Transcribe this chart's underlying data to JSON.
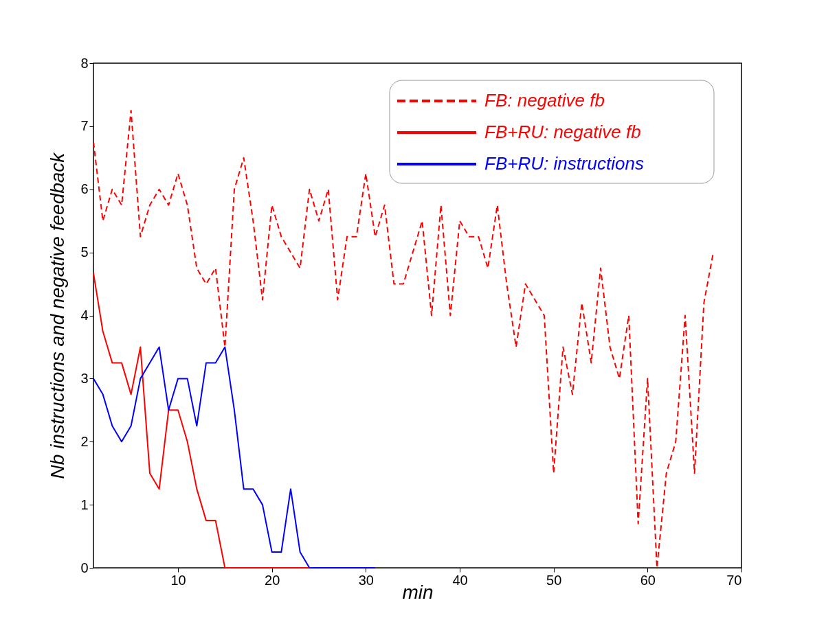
{
  "chart_data": {
    "type": "line",
    "xlabel": "min",
    "ylabel": "Nb instructions and negative feedback",
    "xlim": [
      1,
      70
    ],
    "xticks": [
      10,
      20,
      30,
      40,
      50,
      60,
      70
    ],
    "ylim": [
      0,
      8
    ],
    "yticks": [
      0,
      1,
      2,
      3,
      4,
      5,
      6,
      7,
      8
    ],
    "grid": false,
    "legend": "top right",
    "series": [
      {
        "name": "FB: negative fb",
        "color": "#ff0000",
        "line_style": "dashed",
        "x": [
          1,
          2,
          3,
          4,
          5,
          6,
          7,
          8,
          9,
          10,
          11,
          12,
          13,
          14,
          15,
          16,
          17,
          18,
          19,
          20,
          21,
          22,
          23,
          24,
          25,
          26,
          27,
          28,
          29,
          30,
          31,
          32,
          33,
          34,
          35,
          36,
          37,
          38,
          39,
          40,
          41,
          42,
          43,
          44,
          45,
          46,
          47,
          48,
          49,
          50,
          51,
          52,
          53,
          54,
          55,
          56,
          57,
          58,
          59,
          60,
          61,
          62,
          63,
          64,
          65,
          66,
          67
        ],
        "values": [
          6.75,
          5.5,
          6,
          5.75,
          7.25,
          5.25,
          5.75,
          6,
          5.75,
          6.25,
          5.75,
          4.75,
          4.5,
          4.75,
          3.5,
          6,
          6.5,
          5.5,
          4.25,
          5.75,
          5.25,
          5,
          4.75,
          6,
          5.5,
          6,
          4.25,
          5.25,
          5.25,
          6.25,
          5.25,
          5.75,
          4.5,
          4.5,
          5,
          5.5,
          4,
          5.75,
          4,
          5.5,
          5.25,
          5.25,
          4.75,
          5.75,
          4.5,
          3.5,
          4.5,
          4.25,
          4,
          1.5,
          3.5,
          2.75,
          4.2,
          3.25,
          4.75,
          3.5,
          3,
          4,
          0.7,
          3,
          0,
          1.5,
          2,
          4,
          1.5,
          4.2,
          5
        ]
      },
      {
        "name": "FB+RU: negative fb",
        "color": "#ff0000",
        "line_style": "solid",
        "x": [
          1,
          2,
          3,
          4,
          5,
          6,
          7,
          8,
          9,
          10,
          11,
          12,
          13,
          14,
          15,
          16,
          17,
          18,
          19,
          20,
          21,
          22,
          23,
          24
        ],
        "values": [
          4.67,
          3.75,
          3.25,
          3.25,
          2.75,
          3.5,
          1.5,
          1.25,
          2.5,
          2.5,
          2,
          1.25,
          0.75,
          0.75,
          0,
          0,
          0,
          0,
          0,
          0,
          0,
          0,
          0,
          0
        ]
      },
      {
        "name": "FB+RU: instructions",
        "color": "#0000ff",
        "line_style": "solid",
        "x": [
          1,
          2,
          3,
          4,
          5,
          6,
          7,
          8,
          9,
          10,
          11,
          12,
          13,
          14,
          15,
          16,
          17,
          18,
          19,
          20,
          21,
          22,
          23,
          24,
          25,
          26,
          27,
          28,
          29,
          30,
          31
        ],
        "values": [
          3,
          2.75,
          2.25,
          2,
          2.25,
          3,
          3.25,
          3.5,
          2.5,
          3,
          3,
          2.25,
          3.25,
          3.25,
          3.5,
          2.5,
          1.25,
          1.25,
          1,
          0.25,
          0.25,
          1.25,
          0.25,
          0,
          0,
          0,
          0,
          0,
          0,
          0,
          0
        ]
      }
    ]
  }
}
